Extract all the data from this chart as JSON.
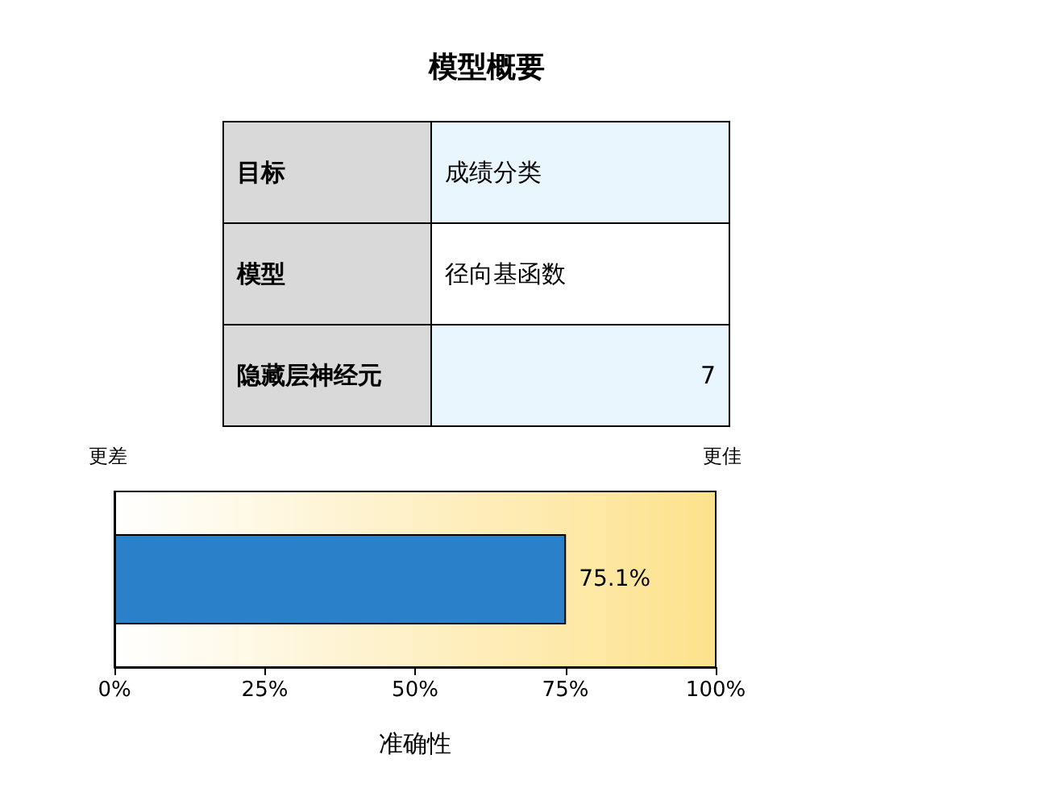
{
  "chart_data": {
    "type": "bar",
    "orientation": "horizontal",
    "title": "模型概要",
    "xlabel": "准确性",
    "categories": [
      null
    ],
    "values": [
      75.1
    ],
    "color": "#2a81c9",
    "value_labels": [
      "75.1%"
    ],
    "xlim": [
      0,
      100
    ],
    "xticks": [
      {
        "value": 0,
        "label": "0%"
      },
      {
        "value": 25,
        "label": "25%"
      },
      {
        "value": 50,
        "label": "50%"
      },
      {
        "value": 75,
        "label": "75%"
      },
      {
        "value": 100,
        "label": "100%"
      }
    ],
    "annotations": [
      "更差",
      "更佳",
      "目标",
      "成绩分类",
      "模型",
      "径向基函数",
      "隐藏层神经元",
      "7"
    ],
    "grid": false
  }
}
